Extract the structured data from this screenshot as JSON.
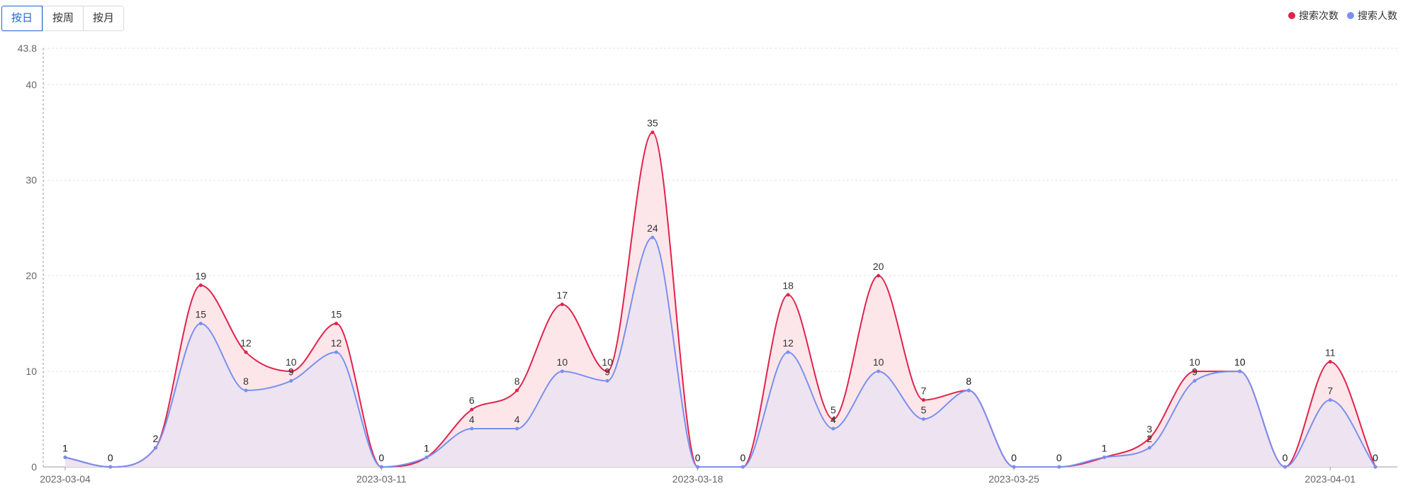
{
  "tabs": [
    {
      "label": "按日",
      "active": true
    },
    {
      "label": "按周",
      "active": false
    },
    {
      "label": "按月",
      "active": false
    }
  ],
  "colors": {
    "series_0": "#e0234c",
    "series_1": "#7890f0",
    "fill_0": "#fde6ea",
    "fill_1": "#ece3f2",
    "active_tab": "#1f63d8"
  },
  "chart_data": {
    "type": "area",
    "x": [
      "2023-03-04",
      "2023-03-05",
      "2023-03-06",
      "2023-03-07",
      "2023-03-08",
      "2023-03-09",
      "2023-03-10",
      "2023-03-11",
      "2023-03-12",
      "2023-03-13",
      "2023-03-14",
      "2023-03-15",
      "2023-03-16",
      "2023-03-17",
      "2023-03-18",
      "2023-03-19",
      "2023-03-20",
      "2023-03-21",
      "2023-03-22",
      "2023-03-23",
      "2023-03-24",
      "2023-03-25",
      "2023-03-26",
      "2023-03-27",
      "2023-03-28",
      "2023-03-29",
      "2023-03-30",
      "2023-03-31",
      "2023-04-01",
      "2023-04-02"
    ],
    "x_tick_labels": [
      "2023-03-04",
      "2023-03-11",
      "2023-03-18",
      "2023-03-25",
      "2023-04-01"
    ],
    "series": [
      {
        "name": "搜索次数",
        "values": [
          1,
          0,
          2,
          19,
          12,
          10,
          15,
          0,
          1,
          6,
          8,
          17,
          10,
          35,
          0,
          0,
          18,
          5,
          20,
          7,
          8,
          0,
          0,
          1,
          3,
          10,
          10,
          0,
          11,
          0
        ]
      },
      {
        "name": "搜索人数",
        "values": [
          1,
          0,
          2,
          15,
          8,
          9,
          12,
          0,
          1,
          4,
          4,
          10,
          9,
          24,
          0,
          0,
          12,
          4,
          10,
          5,
          8,
          0,
          0,
          1,
          2,
          9,
          10,
          0,
          7,
          0
        ]
      }
    ],
    "y_ticks": [
      0,
      10,
      20,
      30,
      40
    ],
    "ymax_label": "43.8",
    "ylim": [
      0,
      43.8
    ],
    "grid": true,
    "legend_position": "top-right"
  }
}
